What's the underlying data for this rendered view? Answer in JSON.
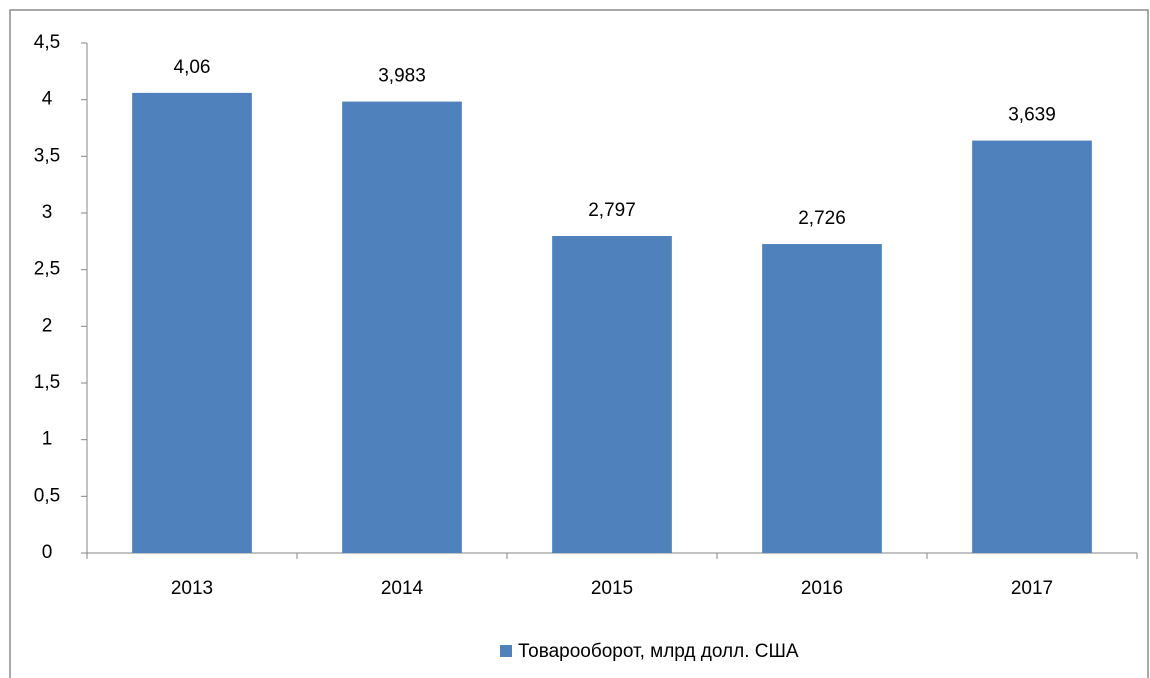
{
  "chart_data": {
    "type": "bar",
    "categories": [
      "2013",
      "2014",
      "2015",
      "2016",
      "2017"
    ],
    "series": [
      {
        "name": "Товарооборот, млрд долл. США",
        "color": "#4f81bd",
        "values": [
          4.06,
          3.983,
          2.797,
          2.726,
          3.639
        ],
        "value_labels": [
          "4,06",
          "3,983",
          "2,797",
          "2,726",
          "3,639"
        ]
      }
    ],
    "ylim": [
      0,
      4.5
    ],
    "yticks": [
      0,
      {
        "value": 0.5,
        "label": "0,5"
      },
      1,
      {
        "value": 1.5,
        "label": "1,5"
      },
      2,
      {
        "value": 2.5,
        "label": "2,5"
      },
      3,
      {
        "value": 3.5,
        "label": "3,5"
      },
      4,
      {
        "value": 4.5,
        "label": "4,5"
      }
    ],
    "grid": false,
    "legend": "bottom"
  }
}
